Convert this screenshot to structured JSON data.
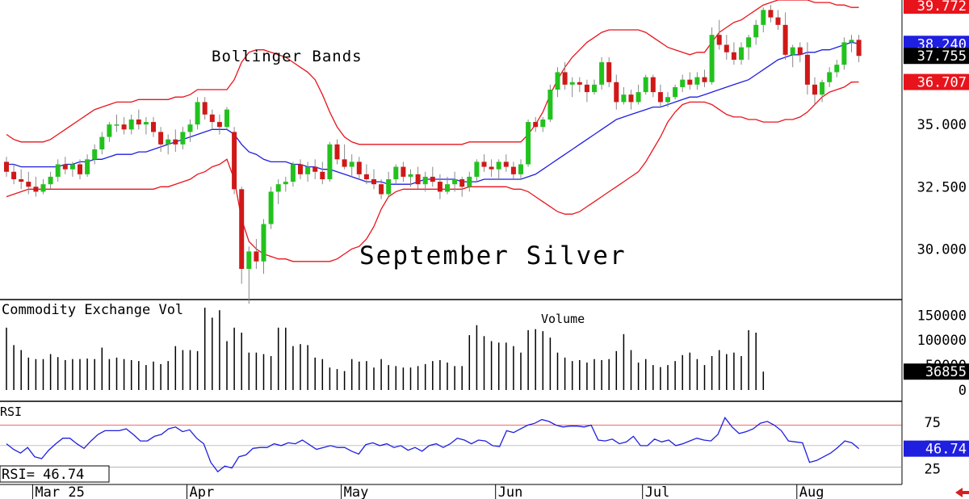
{
  "chart_data": [
    {
      "type": "candlestick",
      "title": "September Silver",
      "overlay_label": "Bollinger Bands",
      "x_months": [
        "Mar 25",
        "Apr",
        "May",
        "Jun",
        "Jul",
        "Aug"
      ],
      "y_ticks": [
        "30.000",
        "32.500",
        "35.000"
      ],
      "ylim": [
        28.0,
        40.0
      ],
      "price_tags": [
        {
          "value": "39.772",
          "color": "#e8141c"
        },
        {
          "value": "38.240",
          "color": "#1f1fe0"
        },
        {
          "value": "37.755",
          "color": "#000000"
        },
        {
          "value": "36.707",
          "color": "#e8141c"
        }
      ],
      "candles": [
        [
          33.5,
          33.7,
          32.9,
          33.1
        ],
        [
          33.1,
          33.4,
          32.6,
          32.8
        ],
        [
          32.8,
          33.2,
          32.4,
          32.7
        ],
        [
          32.7,
          33.1,
          32.2,
          32.5
        ],
        [
          32.5,
          32.9,
          32.1,
          32.3
        ],
        [
          32.3,
          32.8,
          32.2,
          32.6
        ],
        [
          32.6,
          33.1,
          32.4,
          32.9
        ],
        [
          32.9,
          33.6,
          32.7,
          33.4
        ],
        [
          33.4,
          33.7,
          33.0,
          33.2
        ],
        [
          33.2,
          33.5,
          32.9,
          33.4
        ],
        [
          33.4,
          33.6,
          32.8,
          33.0
        ],
        [
          33.0,
          33.8,
          32.9,
          33.6
        ],
        [
          33.6,
          34.2,
          33.4,
          34.0
        ],
        [
          34.0,
          34.7,
          33.8,
          34.5
        ],
        [
          34.5,
          35.1,
          34.3,
          35.0
        ],
        [
          35.0,
          35.4,
          34.7,
          35.0
        ],
        [
          35.0,
          35.3,
          34.6,
          34.8
        ],
        [
          34.8,
          35.4,
          34.6,
          35.2
        ],
        [
          35.2,
          35.6,
          34.8,
          35.0
        ],
        [
          35.0,
          35.3,
          34.6,
          35.1
        ],
        [
          35.1,
          35.3,
          34.5,
          34.7
        ],
        [
          34.7,
          34.9,
          33.9,
          34.2
        ],
        [
          34.2,
          34.6,
          33.8,
          34.4
        ],
        [
          34.4,
          34.8,
          33.9,
          34.2
        ],
        [
          34.2,
          34.9,
          34.0,
          34.7
        ],
        [
          34.7,
          35.2,
          34.3,
          35.0
        ],
        [
          35.0,
          36.1,
          34.8,
          35.9
        ],
        [
          35.9,
          36.1,
          35.2,
          35.4
        ],
        [
          35.4,
          35.6,
          34.8,
          35.1
        ],
        [
          35.1,
          35.4,
          34.6,
          34.9
        ],
        [
          34.9,
          35.7,
          34.8,
          35.6
        ],
        [
          34.7,
          34.9,
          32.2,
          32.4
        ],
        [
          32.4,
          32.5,
          28.6,
          29.2
        ],
        [
          29.2,
          30.1,
          27.8,
          29.9
        ],
        [
          29.9,
          30.4,
          29.2,
          29.5
        ],
        [
          29.5,
          31.2,
          29.0,
          31.0
        ],
        [
          31.0,
          32.5,
          30.8,
          32.3
        ],
        [
          32.3,
          32.8,
          31.8,
          32.6
        ],
        [
          32.6,
          32.9,
          32.3,
          32.7
        ],
        [
          32.7,
          33.5,
          32.5,
          33.4
        ],
        [
          33.4,
          33.6,
          32.8,
          33.0
        ],
        [
          33.0,
          33.5,
          32.7,
          33.3
        ],
        [
          33.3,
          33.6,
          32.8,
          33.1
        ],
        [
          33.1,
          33.5,
          32.6,
          32.8
        ],
        [
          32.8,
          34.3,
          32.7,
          34.2
        ],
        [
          34.2,
          34.4,
          33.4,
          33.6
        ],
        [
          33.6,
          34.2,
          33.2,
          33.3
        ],
        [
          33.3,
          33.8,
          32.9,
          33.5
        ],
        [
          33.5,
          33.7,
          32.8,
          33.0
        ],
        [
          33.0,
          33.4,
          32.6,
          32.8
        ],
        [
          32.8,
          33.2,
          32.4,
          32.6
        ],
        [
          32.6,
          32.8,
          32.0,
          32.2
        ],
        [
          32.2,
          33.1,
          32.1,
          32.8
        ],
        [
          32.8,
          33.4,
          32.6,
          33.3
        ],
        [
          33.3,
          33.5,
          32.7,
          32.9
        ],
        [
          32.9,
          33.2,
          32.5,
          33.0
        ],
        [
          33.0,
          33.3,
          32.4,
          32.6
        ],
        [
          32.6,
          33.1,
          32.3,
          32.9
        ],
        [
          32.9,
          33.3,
          32.5,
          32.7
        ],
        [
          32.7,
          33.0,
          32.0,
          32.3
        ],
        [
          32.3,
          32.9,
          32.2,
          32.6
        ],
        [
          32.6,
          33.1,
          32.3,
          32.8
        ],
        [
          32.8,
          32.9,
          32.1,
          32.5
        ],
        [
          32.5,
          33.1,
          32.3,
          32.9
        ],
        [
          32.9,
          33.6,
          32.7,
          33.5
        ],
        [
          33.5,
          33.8,
          33.1,
          33.3
        ],
        [
          33.3,
          33.6,
          32.9,
          33.2
        ],
        [
          33.2,
          33.6,
          32.8,
          33.5
        ],
        [
          33.5,
          33.8,
          33.1,
          33.3
        ],
        [
          33.3,
          33.5,
          32.8,
          33.0
        ],
        [
          33.0,
          33.6,
          32.8,
          33.4
        ],
        [
          33.4,
          35.2,
          33.3,
          35.1
        ],
        [
          35.1,
          35.3,
          34.7,
          34.9
        ],
        [
          34.9,
          35.3,
          34.7,
          35.2
        ],
        [
          35.2,
          36.6,
          35.1,
          36.4
        ],
        [
          36.4,
          37.3,
          36.1,
          37.1
        ],
        [
          37.1,
          37.5,
          36.4,
          36.6
        ],
        [
          36.6,
          36.9,
          36.1,
          36.7
        ],
        [
          36.7,
          36.9,
          36.3,
          36.6
        ],
        [
          36.6,
          36.8,
          35.9,
          36.3
        ],
        [
          36.3,
          36.8,
          36.2,
          36.6
        ],
        [
          36.6,
          37.7,
          36.4,
          37.5
        ],
        [
          37.5,
          37.7,
          36.5,
          36.7
        ],
        [
          36.7,
          37.0,
          35.6,
          35.9
        ],
        [
          35.9,
          36.5,
          35.8,
          36.2
        ],
        [
          36.2,
          36.4,
          35.6,
          35.9
        ],
        [
          35.9,
          36.6,
          35.8,
          36.3
        ],
        [
          36.3,
          37.0,
          36.2,
          36.9
        ],
        [
          36.9,
          37.0,
          36.1,
          36.3
        ],
        [
          36.3,
          36.6,
          35.7,
          35.9
        ],
        [
          35.9,
          36.3,
          35.7,
          36.1
        ],
        [
          36.1,
          36.6,
          36.0,
          36.5
        ],
        [
          36.5,
          37.0,
          36.3,
          36.8
        ],
        [
          36.8,
          37.1,
          36.4,
          36.6
        ],
        [
          36.6,
          37.1,
          36.4,
          36.9
        ],
        [
          36.9,
          37.2,
          36.5,
          36.7
        ],
        [
          36.7,
          38.9,
          36.6,
          38.6
        ],
        [
          38.6,
          39.2,
          38.0,
          38.2
        ],
        [
          38.2,
          38.6,
          37.6,
          37.9
        ],
        [
          37.9,
          38.3,
          37.4,
          37.6
        ],
        [
          37.6,
          38.3,
          37.4,
          38.1
        ],
        [
          38.1,
          38.6,
          37.6,
          38.5
        ],
        [
          38.5,
          39.2,
          38.2,
          39.0
        ],
        [
          39.0,
          39.7,
          38.7,
          39.6
        ],
        [
          39.6,
          39.8,
          39.1,
          39.3
        ],
        [
          39.3,
          39.6,
          38.8,
          39.0
        ],
        [
          39.0,
          39.5,
          37.6,
          37.8
        ],
        [
          37.8,
          38.2,
          37.3,
          38.1
        ],
        [
          38.1,
          38.3,
          37.5,
          37.8
        ],
        [
          37.8,
          38.3,
          36.2,
          36.6
        ],
        [
          36.6,
          36.9,
          35.8,
          36.2
        ],
        [
          36.2,
          36.8,
          35.9,
          36.7
        ],
        [
          36.7,
          37.3,
          36.5,
          37.1
        ],
        [
          37.1,
          37.6,
          36.9,
          37.4
        ],
        [
          37.4,
          38.5,
          37.2,
          38.3
        ],
        [
          38.3,
          38.6,
          37.9,
          38.4
        ],
        [
          38.4,
          38.6,
          37.5,
          37.755
        ]
      ],
      "bollinger_upper": [
        34.6,
        34.4,
        34.3,
        34.3,
        34.3,
        34.3,
        34.4,
        34.6,
        34.8,
        35.0,
        35.2,
        35.4,
        35.6,
        35.7,
        35.8,
        35.9,
        35.9,
        35.9,
        36.0,
        36.0,
        36.0,
        36.0,
        36.0,
        36.1,
        36.1,
        36.2,
        36.4,
        36.4,
        36.4,
        36.4,
        36.4,
        36.8,
        37.5,
        37.9,
        38.0,
        38.0,
        37.9,
        37.8,
        37.7,
        37.5,
        37.3,
        37.1,
        36.8,
        36.2,
        35.5,
        34.9,
        34.5,
        34.3,
        34.2,
        34.2,
        34.2,
        34.2,
        34.2,
        34.2,
        34.2,
        34.2,
        34.2,
        34.2,
        34.2,
        34.2,
        34.2,
        34.2,
        34.2,
        34.3,
        34.3,
        34.3,
        34.3,
        34.3,
        34.3,
        34.3,
        34.3,
        34.6,
        35.0,
        35.5,
        36.2,
        36.8,
        37.3,
        37.7,
        38.0,
        38.3,
        38.5,
        38.7,
        38.8,
        38.8,
        38.8,
        38.8,
        38.8,
        38.7,
        38.5,
        38.3,
        38.1,
        38.0,
        37.9,
        37.8,
        37.9,
        37.9,
        38.3,
        38.7,
        38.9,
        39.1,
        39.2,
        39.4,
        39.6,
        39.8,
        39.9,
        40.0,
        40.0,
        40.0,
        40.0,
        40.0,
        39.9,
        39.9,
        39.9,
        39.8,
        39.8,
        39.7,
        39.7
      ],
      "bollinger_mid": [
        33.4,
        33.4,
        33.3,
        33.3,
        33.3,
        33.3,
        33.3,
        33.3,
        33.4,
        33.4,
        33.5,
        33.5,
        33.6,
        33.6,
        33.7,
        33.8,
        33.8,
        33.8,
        33.9,
        33.9,
        34.0,
        34.1,
        34.2,
        34.3,
        34.4,
        34.5,
        34.6,
        34.7,
        34.8,
        34.8,
        34.8,
        34.6,
        34.2,
        33.9,
        33.8,
        33.6,
        33.5,
        33.5,
        33.5,
        33.4,
        33.4,
        33.3,
        33.3,
        33.2,
        33.2,
        33.1,
        33.0,
        32.9,
        32.8,
        32.7,
        32.7,
        32.7,
        32.6,
        32.6,
        32.6,
        32.6,
        32.7,
        32.8,
        32.8,
        32.8,
        32.8,
        32.8,
        32.7,
        32.7,
        32.7,
        32.8,
        32.8,
        32.8,
        32.8,
        32.8,
        32.8,
        32.9,
        33.0,
        33.2,
        33.4,
        33.6,
        33.8,
        34.0,
        34.2,
        34.4,
        34.6,
        34.8,
        35.0,
        35.2,
        35.3,
        35.4,
        35.5,
        35.6,
        35.7,
        35.7,
        35.8,
        35.9,
        36.0,
        36.1,
        36.1,
        36.2,
        36.3,
        36.4,
        36.5,
        36.6,
        36.7,
        36.8,
        37.0,
        37.2,
        37.4,
        37.6,
        37.7,
        37.8,
        37.8,
        37.9,
        37.9,
        38.0,
        38.0,
        38.1,
        38.2,
        38.3,
        38.24
      ],
      "bollinger_lower": [
        32.1,
        32.2,
        32.3,
        32.4,
        32.4,
        32.4,
        32.4,
        32.4,
        32.4,
        32.4,
        32.4,
        32.4,
        32.4,
        32.4,
        32.4,
        32.4,
        32.4,
        32.4,
        32.4,
        32.4,
        32.4,
        32.5,
        32.5,
        32.6,
        32.7,
        32.8,
        33.0,
        33.1,
        33.3,
        33.4,
        33.6,
        32.8,
        31.2,
        30.3,
        30.0,
        29.8,
        29.7,
        29.6,
        29.6,
        29.5,
        29.5,
        29.5,
        29.5,
        29.5,
        29.5,
        29.6,
        29.8,
        30.0,
        30.1,
        30.4,
        30.9,
        31.6,
        32.1,
        32.3,
        32.4,
        32.4,
        32.4,
        32.4,
        32.4,
        32.4,
        32.4,
        32.4,
        32.4,
        32.5,
        32.5,
        32.5,
        32.5,
        32.5,
        32.5,
        32.4,
        32.4,
        32.3,
        32.1,
        31.9,
        31.7,
        31.5,
        31.4,
        31.4,
        31.5,
        31.7,
        31.9,
        32.1,
        32.3,
        32.5,
        32.7,
        32.9,
        33.1,
        33.5,
        34.0,
        34.5,
        35.1,
        35.5,
        35.8,
        35.9,
        35.9,
        35.9,
        35.8,
        35.6,
        35.4,
        35.3,
        35.3,
        35.2,
        35.2,
        35.1,
        35.1,
        35.1,
        35.2,
        35.2,
        35.3,
        35.5,
        35.8,
        36.1,
        36.3,
        36.4,
        36.5,
        36.7,
        36.707
      ]
    },
    {
      "type": "bar",
      "title": "Volume",
      "panel_label": "Commodity Exchange Vol",
      "y_ticks": [
        "150000",
        "100000",
        "50000",
        "0"
      ],
      "ylim": [
        0,
        170000
      ],
      "last_value_tag": "36855",
      "values": [
        125000,
        90000,
        80000,
        65000,
        62000,
        62000,
        72000,
        66000,
        60000,
        62000,
        62000,
        63000,
        62000,
        85000,
        62000,
        65000,
        62000,
        60000,
        58000,
        50000,
        57000,
        52000,
        58000,
        88000,
        80000,
        80000,
        78000,
        165000,
        145000,
        160000,
        98000,
        125000,
        115000,
        75000,
        75000,
        72000,
        68000,
        125000,
        125000,
        88000,
        92000,
        90000,
        65000,
        62000,
        45000,
        42000,
        38000,
        62000,
        57000,
        58000,
        45000,
        62000,
        50000,
        48000,
        45000,
        45000,
        48000,
        52000,
        58000,
        60000,
        55000,
        48000,
        48000,
        110000,
        130000,
        108000,
        98000,
        95000,
        95000,
        88000,
        75000,
        120000,
        122000,
        118000,
        105000,
        75000,
        65000,
        58000,
        60000,
        55000,
        62000,
        60000,
        62000,
        78000,
        112000,
        80000,
        55000,
        62000,
        50000,
        46000,
        50000,
        58000,
        70000,
        75000,
        62000,
        50000,
        68000,
        80000,
        72000,
        75000,
        68000,
        120000,
        115000,
        36855
      ]
    },
    {
      "type": "line",
      "title": "RSI",
      "value_label": "RSI=  46.74",
      "y_ticks": [
        "75",
        "50",
        "25"
      ],
      "ylim": [
        10,
        95
      ],
      "last_value_tag": "46.74",
      "values": [
        52,
        46,
        42,
        48,
        38,
        36,
        45,
        52,
        58,
        58,
        52,
        47,
        55,
        62,
        66,
        66,
        66,
        68,
        62,
        55,
        55,
        60,
        62,
        68,
        70,
        65,
        67,
        58,
        52,
        32,
        22,
        28,
        26,
        38,
        40,
        47,
        48,
        48,
        52,
        50,
        53,
        52,
        56,
        51,
        46,
        48,
        50,
        48,
        48,
        44,
        41,
        51,
        53,
        50,
        52,
        48,
        50,
        45,
        48,
        44,
        50,
        52,
        48,
        52,
        58,
        56,
        52,
        56,
        55,
        50,
        49,
        66,
        64,
        68,
        72,
        74,
        78,
        76,
        72,
        70,
        71,
        71,
        70,
        72,
        56,
        55,
        57,
        52,
        54,
        60,
        50,
        50,
        57,
        54,
        56,
        50,
        52,
        55,
        58,
        56,
        55,
        62,
        80,
        70,
        63,
        65,
        68,
        74,
        76,
        72,
        66,
        55,
        54,
        53,
        32,
        34,
        38,
        42,
        48,
        55,
        53,
        46.74
      ]
    }
  ]
}
